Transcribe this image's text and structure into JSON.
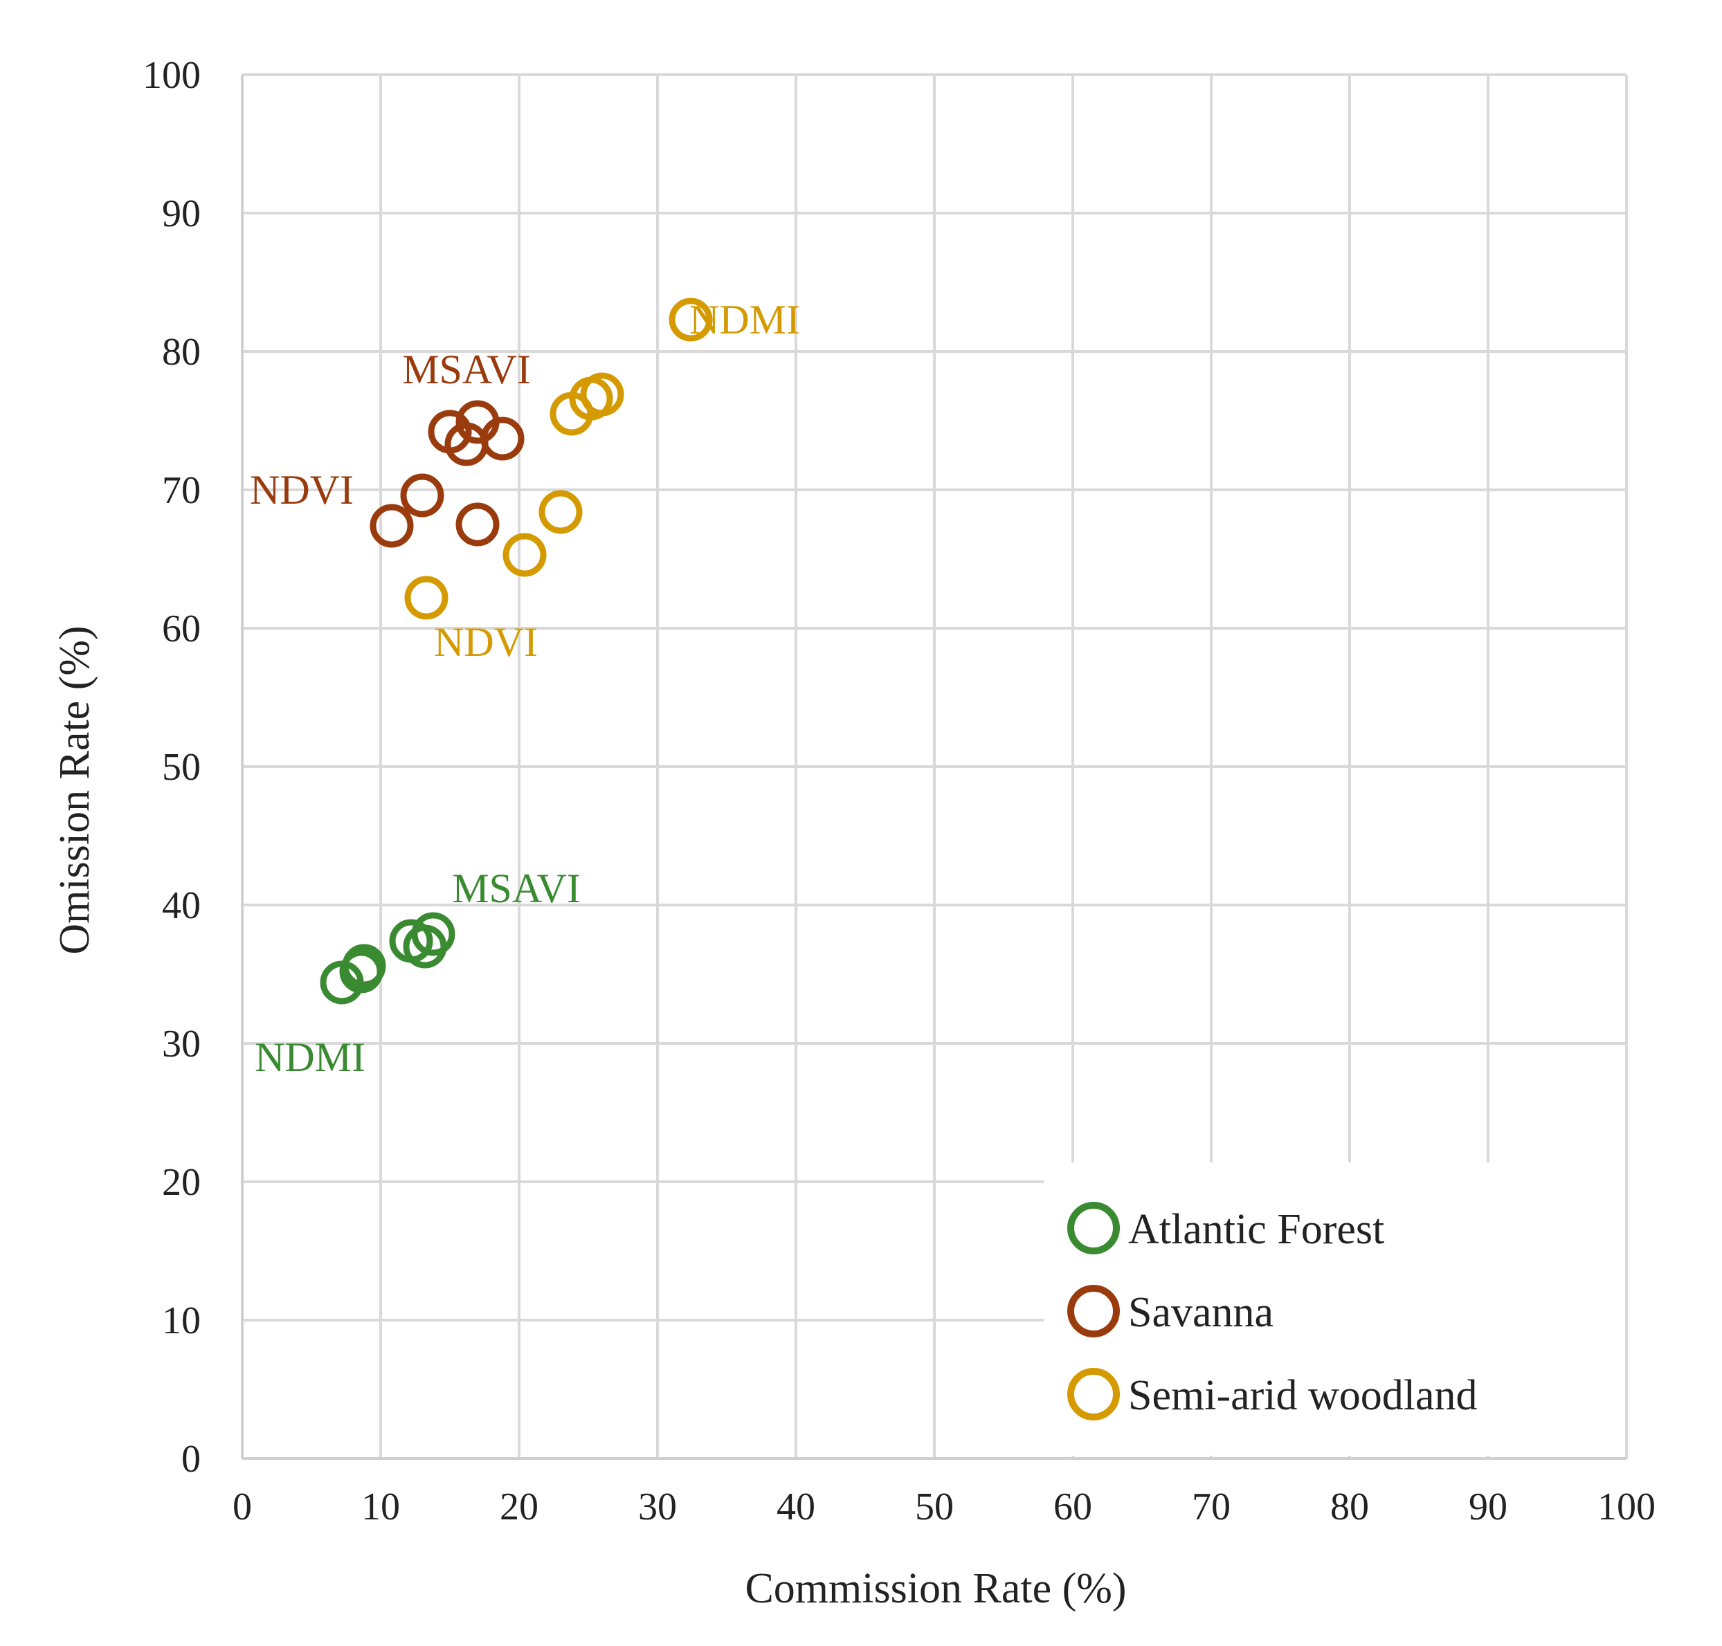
{
  "chart_data": {
    "type": "scatter",
    "title": "",
    "xlabel": "Commission Rate (%)",
    "ylabel": "Omission Rate (%)",
    "xlim": [
      0,
      100
    ],
    "ylim": [
      0,
      100
    ],
    "xticks": [
      0,
      10,
      20,
      30,
      40,
      50,
      60,
      70,
      80,
      90,
      100
    ],
    "yticks": [
      0,
      10,
      20,
      30,
      40,
      50,
      60,
      70,
      80,
      90,
      100
    ],
    "grid": true,
    "legend_position": "bottom-right",
    "series": [
      {
        "name": "Atlantic Forest",
        "color": "#3a8a32",
        "points": [
          {
            "x": 7.2,
            "y": 34.4
          },
          {
            "x": 8.6,
            "y": 35.2
          },
          {
            "x": 8.8,
            "y": 35.6
          },
          {
            "x": 12.2,
            "y": 37.4
          },
          {
            "x": 13.2,
            "y": 37.0
          },
          {
            "x": 13.8,
            "y": 37.9
          }
        ]
      },
      {
        "name": "Savanna",
        "color": "#9a3b0e",
        "points": [
          {
            "x": 10.8,
            "y": 67.4
          },
          {
            "x": 13.0,
            "y": 69.6
          },
          {
            "x": 15.0,
            "y": 74.2
          },
          {
            "x": 16.2,
            "y": 73.3
          },
          {
            "x": 17.0,
            "y": 74.9
          },
          {
            "x": 18.8,
            "y": 73.7
          },
          {
            "x": 17.0,
            "y": 67.5
          }
        ]
      },
      {
        "name": "Semi-arid woodland",
        "color": "#d49a00",
        "points": [
          {
            "x": 13.3,
            "y": 62.2
          },
          {
            "x": 20.4,
            "y": 65.3
          },
          {
            "x": 23.0,
            "y": 68.4
          },
          {
            "x": 23.8,
            "y": 75.5
          },
          {
            "x": 25.2,
            "y": 76.6
          },
          {
            "x": 26.0,
            "y": 76.9
          },
          {
            "x": 32.4,
            "y": 82.3
          }
        ]
      }
    ],
    "annotations": [
      {
        "text": "NDMI",
        "series": "Semi-arid woodland",
        "x": 36.3,
        "y": 82.3
      },
      {
        "text": "MSAVI",
        "series": "Savanna",
        "x": 16.2,
        "y": 78.7
      },
      {
        "text": "NDVI",
        "series": "Savanna",
        "x": 4.3,
        "y": 70.0
      },
      {
        "text": "NDVI",
        "series": "Semi-arid woodland",
        "x": 17.6,
        "y": 59.0
      },
      {
        "text": "MSAVI",
        "series": "Atlantic Forest",
        "x": 19.8,
        "y": 41.2
      },
      {
        "text": "NDMI",
        "series": "Atlantic Forest",
        "x": 4.9,
        "y": 29.0
      }
    ]
  }
}
